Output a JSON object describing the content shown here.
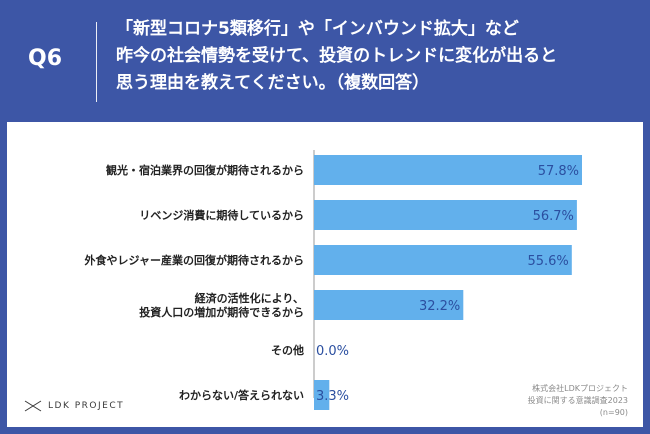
{
  "question": {
    "number": "Q6",
    "lines": [
      "「新型コロナ5類移行」や「インバウンド拡大」など",
      "昨今の社会情勢を受けて、投資のトレンドに変化が出ると",
      "思う理由を教えてください。（複数回答）"
    ]
  },
  "footer": {
    "logo_text": "LDK PROJECT",
    "source_lines": [
      "株式会社LDKプロジェクト",
      "投資に関する意識調査2023",
      "(n=90)"
    ]
  },
  "colors": {
    "header_bg": "#3d56a6",
    "bar": "#62b0ec",
    "value_text": "#2b4fa0"
  },
  "chart_data": {
    "type": "bar",
    "orientation": "horizontal",
    "categories": [
      [
        "観光・宿泊業界の回復が期待されるから"
      ],
      [
        "リベンジ消費に期待しているから"
      ],
      [
        "外食やレジャー産業の回復が期待されるから"
      ],
      [
        "経済の活性化により、",
        "投資人口の増加が期待できるから"
      ],
      [
        "その他"
      ],
      [
        "わからない/答えられない"
      ]
    ],
    "values": [
      57.8,
      56.7,
      55.6,
      32.2,
      0.0,
      3.3
    ],
    "value_labels": [
      "57.8%",
      "56.7%",
      "55.6%",
      "32.2%",
      "0.0%",
      "3.3%"
    ],
    "xlim": [
      0,
      60
    ],
    "unit": "%",
    "grid": false,
    "legend": "none"
  }
}
